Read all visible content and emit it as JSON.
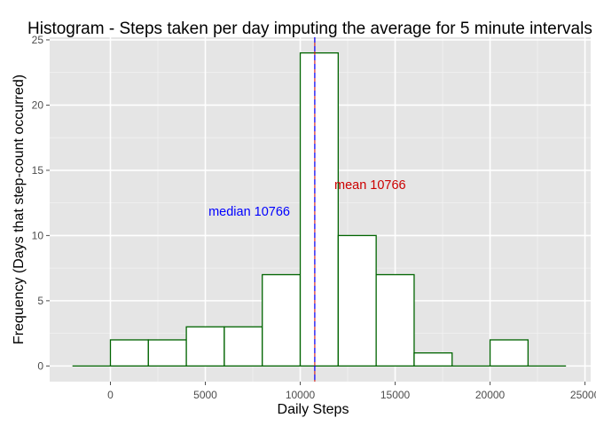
{
  "chart_data": {
    "type": "bar",
    "title": "Histogram - Steps taken per day imputing the average for 5 minute intervals",
    "xlabel": "Daily Steps",
    "ylabel": "Frequency (Days that step-count occurred)",
    "xlim": [
      -3200,
      25300
    ],
    "ylim": [
      -1.2,
      25.2
    ],
    "x_ticks": [
      0,
      5000,
      10000,
      15000,
      20000,
      25000
    ],
    "x_tick_labels": [
      "0",
      "5000",
      "10000",
      "15000",
      "20000",
      "25000"
    ],
    "y_ticks": [
      0,
      5,
      10,
      15,
      20,
      25
    ],
    "y_tick_labels": [
      "0",
      "5",
      "10",
      "15",
      "20",
      "25"
    ],
    "grid": true,
    "bin_width": 2000,
    "bins": [
      {
        "start": -2000,
        "end": 0,
        "count": 0
      },
      {
        "start": 0,
        "end": 2000,
        "count": 2
      },
      {
        "start": 2000,
        "end": 4000,
        "count": 2
      },
      {
        "start": 4000,
        "end": 6000,
        "count": 3
      },
      {
        "start": 6000,
        "end": 8000,
        "count": 3
      },
      {
        "start": 8000,
        "end": 10000,
        "count": 7
      },
      {
        "start": 10000,
        "end": 12000,
        "count": 24
      },
      {
        "start": 12000,
        "end": 14000,
        "count": 10
      },
      {
        "start": 14000,
        "end": 16000,
        "count": 7
      },
      {
        "start": 16000,
        "end": 18000,
        "count": 1
      },
      {
        "start": 18000,
        "end": 20000,
        "count": 0
      },
      {
        "start": 20000,
        "end": 22000,
        "count": 2
      },
      {
        "start": 22000,
        "end": 24000,
        "count": 0
      }
    ],
    "mean": 10766,
    "median": 10766,
    "annotations": {
      "mean_label": "mean 10766",
      "median_label": "median 10766"
    },
    "colors": {
      "panel_background": "#e5e5e5",
      "grid": "#ffffff",
      "bar_fill": "#ffffff",
      "bar_outline": "#006400",
      "mean_color": "#cc0000",
      "median_color": "#0000ff",
      "tick_text": "#4d4d4d"
    }
  }
}
